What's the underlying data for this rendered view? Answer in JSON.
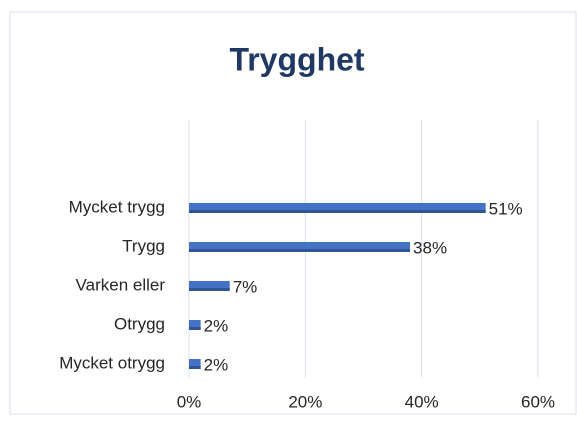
{
  "chart_data": {
    "type": "bar",
    "orientation": "horizontal",
    "title": "Trygghet",
    "categories": [
      "Mycket trygg",
      "Trygg",
      "Varken eller",
      "Otrygg",
      "Mycket otrygg"
    ],
    "values": [
      51,
      38,
      7,
      2,
      2
    ],
    "value_labels": [
      "51%",
      "38%",
      "7%",
      "2%",
      "2%"
    ],
    "color": "#4472c4",
    "xlim": [
      0,
      60
    ],
    "xticks": [
      {
        "value": 0,
        "label": "0%"
      },
      {
        "value": 20,
        "label": "20%"
      },
      {
        "value": 40,
        "label": "40%"
      },
      {
        "value": 60,
        "label": "60%"
      }
    ],
    "grid": true
  }
}
